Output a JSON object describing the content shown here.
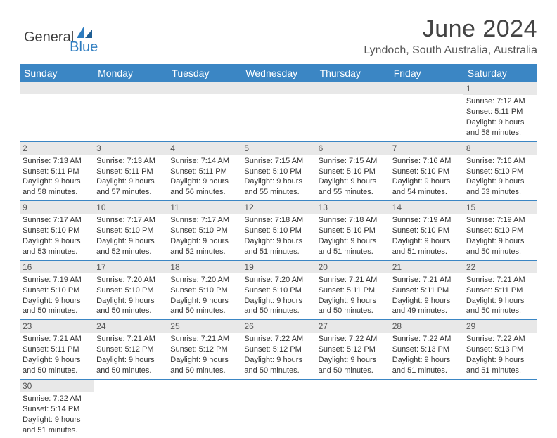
{
  "logo": {
    "textA": "General",
    "textB": "Blue"
  },
  "title": "June 2024",
  "location": "Lyndoch, South Australia, Australia",
  "weekdays": [
    "Sunday",
    "Monday",
    "Tuesday",
    "Wednesday",
    "Thursday",
    "Friday",
    "Saturday"
  ],
  "header_bg": "#3b86c4",
  "daybar_bg": "#e8e8e8",
  "weeks": [
    [
      null,
      null,
      null,
      null,
      null,
      null,
      {
        "n": "1",
        "sr": "Sunrise: 7:12 AM",
        "ss": "Sunset: 5:11 PM",
        "d1": "Daylight: 9 hours",
        "d2": "and 58 minutes."
      }
    ],
    [
      {
        "n": "2",
        "sr": "Sunrise: 7:13 AM",
        "ss": "Sunset: 5:11 PM",
        "d1": "Daylight: 9 hours",
        "d2": "and 58 minutes."
      },
      {
        "n": "3",
        "sr": "Sunrise: 7:13 AM",
        "ss": "Sunset: 5:11 PM",
        "d1": "Daylight: 9 hours",
        "d2": "and 57 minutes."
      },
      {
        "n": "4",
        "sr": "Sunrise: 7:14 AM",
        "ss": "Sunset: 5:11 PM",
        "d1": "Daylight: 9 hours",
        "d2": "and 56 minutes."
      },
      {
        "n": "5",
        "sr": "Sunrise: 7:15 AM",
        "ss": "Sunset: 5:10 PM",
        "d1": "Daylight: 9 hours",
        "d2": "and 55 minutes."
      },
      {
        "n": "6",
        "sr": "Sunrise: 7:15 AM",
        "ss": "Sunset: 5:10 PM",
        "d1": "Daylight: 9 hours",
        "d2": "and 55 minutes."
      },
      {
        "n": "7",
        "sr": "Sunrise: 7:16 AM",
        "ss": "Sunset: 5:10 PM",
        "d1": "Daylight: 9 hours",
        "d2": "and 54 minutes."
      },
      {
        "n": "8",
        "sr": "Sunrise: 7:16 AM",
        "ss": "Sunset: 5:10 PM",
        "d1": "Daylight: 9 hours",
        "d2": "and 53 minutes."
      }
    ],
    [
      {
        "n": "9",
        "sr": "Sunrise: 7:17 AM",
        "ss": "Sunset: 5:10 PM",
        "d1": "Daylight: 9 hours",
        "d2": "and 53 minutes."
      },
      {
        "n": "10",
        "sr": "Sunrise: 7:17 AM",
        "ss": "Sunset: 5:10 PM",
        "d1": "Daylight: 9 hours",
        "d2": "and 52 minutes."
      },
      {
        "n": "11",
        "sr": "Sunrise: 7:17 AM",
        "ss": "Sunset: 5:10 PM",
        "d1": "Daylight: 9 hours",
        "d2": "and 52 minutes."
      },
      {
        "n": "12",
        "sr": "Sunrise: 7:18 AM",
        "ss": "Sunset: 5:10 PM",
        "d1": "Daylight: 9 hours",
        "d2": "and 51 minutes."
      },
      {
        "n": "13",
        "sr": "Sunrise: 7:18 AM",
        "ss": "Sunset: 5:10 PM",
        "d1": "Daylight: 9 hours",
        "d2": "and 51 minutes."
      },
      {
        "n": "14",
        "sr": "Sunrise: 7:19 AM",
        "ss": "Sunset: 5:10 PM",
        "d1": "Daylight: 9 hours",
        "d2": "and 51 minutes."
      },
      {
        "n": "15",
        "sr": "Sunrise: 7:19 AM",
        "ss": "Sunset: 5:10 PM",
        "d1": "Daylight: 9 hours",
        "d2": "and 50 minutes."
      }
    ],
    [
      {
        "n": "16",
        "sr": "Sunrise: 7:19 AM",
        "ss": "Sunset: 5:10 PM",
        "d1": "Daylight: 9 hours",
        "d2": "and 50 minutes."
      },
      {
        "n": "17",
        "sr": "Sunrise: 7:20 AM",
        "ss": "Sunset: 5:10 PM",
        "d1": "Daylight: 9 hours",
        "d2": "and 50 minutes."
      },
      {
        "n": "18",
        "sr": "Sunrise: 7:20 AM",
        "ss": "Sunset: 5:10 PM",
        "d1": "Daylight: 9 hours",
        "d2": "and 50 minutes."
      },
      {
        "n": "19",
        "sr": "Sunrise: 7:20 AM",
        "ss": "Sunset: 5:10 PM",
        "d1": "Daylight: 9 hours",
        "d2": "and 50 minutes."
      },
      {
        "n": "20",
        "sr": "Sunrise: 7:21 AM",
        "ss": "Sunset: 5:11 PM",
        "d1": "Daylight: 9 hours",
        "d2": "and 50 minutes."
      },
      {
        "n": "21",
        "sr": "Sunrise: 7:21 AM",
        "ss": "Sunset: 5:11 PM",
        "d1": "Daylight: 9 hours",
        "d2": "and 49 minutes."
      },
      {
        "n": "22",
        "sr": "Sunrise: 7:21 AM",
        "ss": "Sunset: 5:11 PM",
        "d1": "Daylight: 9 hours",
        "d2": "and 50 minutes."
      }
    ],
    [
      {
        "n": "23",
        "sr": "Sunrise: 7:21 AM",
        "ss": "Sunset: 5:11 PM",
        "d1": "Daylight: 9 hours",
        "d2": "and 50 minutes."
      },
      {
        "n": "24",
        "sr": "Sunrise: 7:21 AM",
        "ss": "Sunset: 5:12 PM",
        "d1": "Daylight: 9 hours",
        "d2": "and 50 minutes."
      },
      {
        "n": "25",
        "sr": "Sunrise: 7:21 AM",
        "ss": "Sunset: 5:12 PM",
        "d1": "Daylight: 9 hours",
        "d2": "and 50 minutes."
      },
      {
        "n": "26",
        "sr": "Sunrise: 7:22 AM",
        "ss": "Sunset: 5:12 PM",
        "d1": "Daylight: 9 hours",
        "d2": "and 50 minutes."
      },
      {
        "n": "27",
        "sr": "Sunrise: 7:22 AM",
        "ss": "Sunset: 5:12 PM",
        "d1": "Daylight: 9 hours",
        "d2": "and 50 minutes."
      },
      {
        "n": "28",
        "sr": "Sunrise: 7:22 AM",
        "ss": "Sunset: 5:13 PM",
        "d1": "Daylight: 9 hours",
        "d2": "and 51 minutes."
      },
      {
        "n": "29",
        "sr": "Sunrise: 7:22 AM",
        "ss": "Sunset: 5:13 PM",
        "d1": "Daylight: 9 hours",
        "d2": "and 51 minutes."
      }
    ],
    [
      {
        "n": "30",
        "sr": "Sunrise: 7:22 AM",
        "ss": "Sunset: 5:14 PM",
        "d1": "Daylight: 9 hours",
        "d2": "and 51 minutes."
      },
      null,
      null,
      null,
      null,
      null,
      null
    ]
  ]
}
